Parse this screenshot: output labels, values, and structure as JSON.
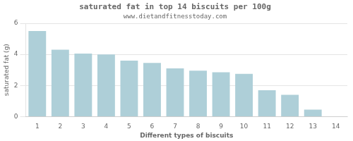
{
  "chart_data": {
    "type": "bar",
    "title": "saturated fat in top 14 biscuits per 100g",
    "subtitle": "www.dietandfitnesstoday.com",
    "xlabel": "Different types of biscuits",
    "ylabel": "saturated fat (g)",
    "categories": [
      1,
      2,
      3,
      4,
      5,
      6,
      7,
      8,
      9,
      10,
      11,
      12,
      13,
      14
    ],
    "values": [
      5.5,
      4.3,
      4.05,
      4.0,
      3.6,
      3.45,
      3.1,
      2.95,
      2.85,
      2.75,
      1.7,
      1.4,
      0.45,
      0.0
    ],
    "color": "#aecfd8",
    "ylim": [
      0,
      6
    ],
    "yticks": [
      0,
      2,
      4,
      6
    ],
    "grid": true
  }
}
